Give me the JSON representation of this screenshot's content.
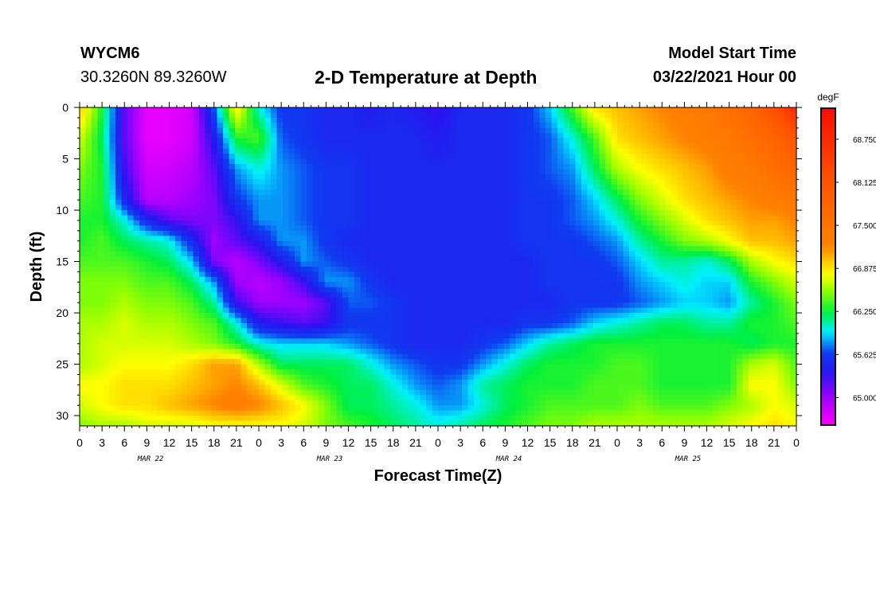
{
  "header": {
    "station": "WYCM6",
    "coords": "30.3260N 89.3260W",
    "title": "2-D Temperature at Depth",
    "model_start_label": "Model Start Time",
    "model_start_time": "03/22/2021 Hour 00"
  },
  "chart_data": {
    "type": "heatmap",
    "title": "2-D Temperature at Depth",
    "xlabel": "Forecast Time(Z)",
    "ylabel": "Depth (ft)",
    "x_tick_labels": [
      "0",
      "3",
      "6",
      "9",
      "12",
      "15",
      "18",
      "21",
      "0",
      "3",
      "6",
      "9",
      "12",
      "15",
      "18",
      "21",
      "0",
      "3",
      "6",
      "9",
      "12",
      "15",
      "18",
      "21",
      "0",
      "3",
      "6",
      "9",
      "12",
      "15",
      "18",
      "21",
      "0"
    ],
    "x_hours": [
      0,
      3,
      6,
      9,
      12,
      15,
      18,
      21,
      24,
      27,
      30,
      33,
      36,
      39,
      42,
      45,
      48,
      51,
      54,
      57,
      60,
      63,
      66,
      69,
      72,
      75,
      78,
      81,
      84,
      87,
      90,
      93,
      96
    ],
    "xlim": [
      0,
      96
    ],
    "date_labels": [
      {
        "label": "MAR 22",
        "hour": 9.5
      },
      {
        "label": "MAR 23",
        "hour": 33.5
      },
      {
        "label": "MAR 24",
        "hour": 57.5
      },
      {
        "label": "MAR 25",
        "hour": 81.5
      }
    ],
    "y_ticks": [
      0,
      5,
      10,
      15,
      20,
      25,
      30
    ],
    "y_tick_labels": [
      "0",
      "5",
      "10",
      "15",
      "20",
      "25",
      "30"
    ],
    "ylim": [
      0,
      31
    ],
    "y_inverted": true,
    "colorbar": {
      "units": "degF",
      "range": [
        64.6,
        69.2
      ],
      "tick_values": [
        68.75,
        68.125,
        67.5,
        66.875,
        66.25,
        65.625,
        65.0
      ],
      "tick_labels": [
        "68.750",
        "68.125",
        "67.500",
        "66.875",
        "66.250",
        "65.625",
        "65.000"
      ]
    },
    "grid_depths": [
      0,
      3,
      6,
      9,
      11,
      13,
      15,
      17,
      19,
      21,
      23,
      25,
      27,
      29,
      31
    ],
    "grid_hours": [
      0,
      3,
      6,
      9,
      12,
      15,
      18,
      21,
      24,
      27,
      30,
      33,
      36,
      39,
      42,
      45,
      48,
      51,
      54,
      57,
      60,
      63,
      66,
      69,
      72,
      75,
      78,
      81,
      84,
      87,
      90,
      93,
      96
    ],
    "values": [
      [
        67.0,
        66.3,
        65.2,
        64.7,
        64.7,
        64.8,
        65.7,
        66.9,
        66.0,
        65.6,
        65.6,
        65.5,
        65.5,
        65.4,
        65.5,
        65.4,
        65.3,
        65.5,
        65.5,
        65.5,
        65.6,
        65.9,
        66.4,
        66.9,
        67.0,
        67.1,
        67.2,
        67.3,
        67.4,
        67.6,
        67.8,
        68.2,
        68.8
      ],
      [
        66.7,
        66.2,
        65.2,
        64.7,
        64.7,
        64.8,
        65.4,
        66.3,
        66.4,
        65.7,
        65.6,
        65.5,
        65.5,
        65.5,
        65.5,
        65.5,
        65.4,
        65.5,
        65.5,
        65.5,
        65.6,
        65.7,
        66.0,
        66.4,
        66.9,
        67.0,
        67.1,
        67.2,
        67.3,
        67.4,
        67.6,
        67.8,
        68.1
      ],
      [
        66.5,
        66.3,
        65.3,
        64.8,
        64.8,
        64.9,
        65.2,
        65.8,
        66.0,
        65.8,
        65.7,
        65.6,
        65.6,
        65.5,
        65.5,
        65.5,
        65.5,
        65.5,
        65.5,
        65.5,
        65.6,
        65.7,
        65.8,
        66.2,
        66.6,
        66.8,
        66.9,
        67.0,
        67.1,
        67.3,
        67.4,
        67.6,
        67.8
      ],
      [
        66.4,
        66.3,
        65.5,
        64.9,
        64.9,
        65.0,
        65.1,
        65.6,
        65.8,
        65.8,
        65.7,
        65.6,
        65.6,
        65.5,
        65.5,
        65.5,
        65.5,
        65.5,
        65.5,
        65.5,
        65.6,
        65.6,
        65.7,
        65.9,
        66.2,
        66.5,
        66.7,
        66.9,
        67.0,
        67.1,
        67.2,
        67.3,
        67.4
      ],
      [
        66.3,
        66.3,
        66.0,
        65.5,
        65.2,
        65.1,
        65.1,
        65.3,
        65.8,
        65.8,
        65.7,
        65.6,
        65.6,
        65.5,
        65.5,
        65.5,
        65.5,
        65.5,
        65.5,
        65.5,
        65.6,
        65.6,
        65.7,
        65.8,
        66.0,
        66.3,
        66.5,
        66.7,
        66.9,
        67.0,
        67.1,
        67.1,
        67.2
      ],
      [
        66.3,
        66.4,
        66.2,
        66.1,
        66.0,
        65.5,
        65.0,
        65.2,
        65.4,
        65.8,
        65.8,
        65.6,
        65.5,
        65.5,
        65.5,
        65.5,
        65.5,
        65.5,
        65.5,
        65.5,
        65.6,
        65.6,
        65.6,
        65.7,
        65.8,
        66.1,
        66.3,
        66.5,
        66.6,
        66.8,
        67.0,
        67.0,
        67.1
      ],
      [
        66.4,
        66.4,
        66.4,
        66.3,
        66.2,
        65.9,
        65.1,
        64.9,
        65.1,
        65.4,
        65.8,
        65.7,
        65.6,
        65.5,
        65.5,
        65.5,
        65.5,
        65.5,
        65.5,
        65.5,
        65.5,
        65.6,
        65.6,
        65.6,
        65.7,
        65.9,
        66.1,
        66.1,
        66.0,
        66.2,
        66.6,
        66.8,
        66.9
      ],
      [
        66.5,
        66.5,
        66.5,
        66.4,
        66.4,
        66.2,
        65.8,
        65.0,
        64.9,
        65.0,
        65.3,
        65.8,
        65.8,
        65.6,
        65.5,
        65.5,
        65.5,
        65.5,
        65.5,
        65.5,
        65.5,
        65.6,
        65.6,
        65.6,
        65.6,
        65.8,
        65.9,
        66.0,
        65.9,
        65.9,
        66.3,
        66.5,
        66.7
      ],
      [
        66.5,
        66.5,
        66.6,
        66.5,
        66.5,
        66.4,
        66.1,
        65.3,
        65.0,
        65.0,
        65.0,
        65.2,
        65.7,
        65.7,
        65.6,
        65.5,
        65.5,
        65.5,
        65.5,
        65.5,
        65.5,
        65.5,
        65.6,
        65.6,
        65.6,
        65.7,
        65.8,
        65.9,
        65.9,
        65.8,
        66.1,
        66.3,
        66.5
      ],
      [
        66.6,
        66.6,
        66.7,
        66.6,
        66.6,
        66.5,
        66.4,
        66.0,
        65.4,
        65.3,
        65.2,
        65.3,
        65.6,
        65.6,
        65.6,
        65.5,
        65.5,
        65.5,
        65.5,
        65.5,
        65.6,
        65.6,
        65.7,
        65.9,
        66.0,
        66.1,
        66.2,
        66.2,
        66.1,
        66.1,
        66.3,
        66.3,
        66.4
      ],
      [
        66.6,
        66.7,
        66.7,
        66.7,
        66.7,
        66.6,
        66.5,
        66.3,
        66.0,
        65.9,
        65.9,
        65.9,
        65.8,
        65.7,
        65.6,
        65.5,
        65.5,
        65.5,
        65.6,
        65.7,
        65.9,
        66.1,
        66.2,
        66.3,
        66.3,
        66.3,
        66.3,
        66.3,
        66.3,
        66.3,
        66.2,
        66.3,
        66.3
      ],
      [
        66.6,
        66.7,
        66.8,
        66.8,
        66.8,
        66.9,
        67.1,
        67.1,
        66.6,
        66.2,
        66.2,
        66.2,
        66.2,
        66.0,
        65.8,
        65.7,
        65.6,
        65.6,
        65.8,
        66.0,
        66.2,
        66.3,
        66.3,
        66.3,
        66.4,
        66.4,
        66.3,
        66.3,
        66.3,
        66.3,
        66.6,
        66.7,
        66.4
      ],
      [
        66.8,
        66.8,
        66.9,
        66.9,
        66.9,
        67.0,
        67.1,
        67.2,
        67.0,
        66.7,
        66.4,
        66.3,
        66.2,
        66.2,
        66.0,
        65.8,
        65.7,
        65.8,
        66.1,
        66.2,
        66.3,
        66.3,
        66.3,
        66.4,
        66.4,
        66.4,
        66.3,
        66.3,
        66.3,
        66.3,
        66.8,
        66.8,
        66.5
      ],
      [
        66.7,
        66.8,
        66.9,
        66.9,
        67.0,
        67.1,
        67.2,
        67.3,
        67.2,
        67.0,
        66.8,
        66.5,
        66.2,
        66.2,
        66.1,
        66.0,
        65.8,
        65.8,
        66.0,
        66.2,
        66.3,
        66.4,
        66.4,
        66.4,
        66.4,
        66.5,
        66.4,
        66.4,
        66.4,
        66.5,
        66.6,
        66.8,
        66.7
      ],
      [
        66.5,
        66.6,
        66.6,
        66.7,
        66.7,
        66.7,
        66.8,
        66.8,
        66.8,
        66.8,
        66.7,
        66.5,
        66.4,
        66.3,
        66.2,
        66.1,
        66.0,
        66.1,
        66.2,
        66.3,
        66.4,
        66.5,
        66.5,
        66.6,
        66.6,
        66.6,
        66.6,
        66.6,
        66.6,
        66.7,
        66.8,
        66.9,
        66.8
      ]
    ]
  }
}
